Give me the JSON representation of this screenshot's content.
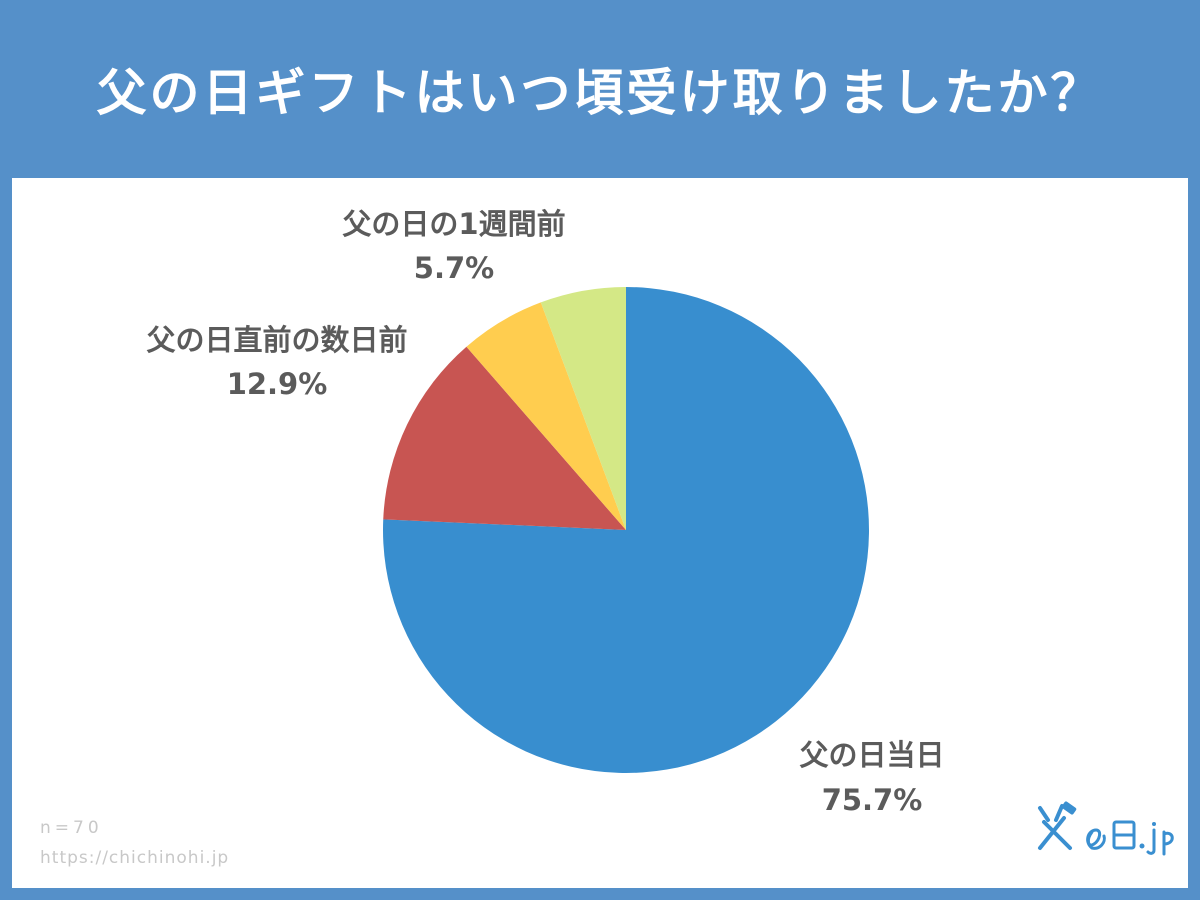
{
  "title": "父の日ギフトはいつ頃受け取りましたか？",
  "footer": {
    "n": "n=70",
    "url": "https://chichinohi.jp"
  },
  "logo": {
    "text": "父の日.jp"
  },
  "colors": {
    "header_bg": "#5590c9",
    "label_text": "#5b5b5b"
  },
  "chart_data": {
    "type": "pie",
    "start": "12 o'clock",
    "direction": "clockwise",
    "slices": [
      {
        "label": "父の日当日",
        "value": 75.7,
        "display": "75.7%",
        "color": "#388ecf"
      },
      {
        "label": "父の日直前の数日前",
        "value": 12.9,
        "display": "12.9%",
        "color": "#c85552"
      },
      {
        "label": "父の日の1週間前",
        "value": 5.7,
        "display": "5.7%",
        "color": "#ffcd4f"
      },
      {
        "label": "",
        "value": 5.7,
        "display": "",
        "color": "#d4e886"
      }
    ]
  }
}
